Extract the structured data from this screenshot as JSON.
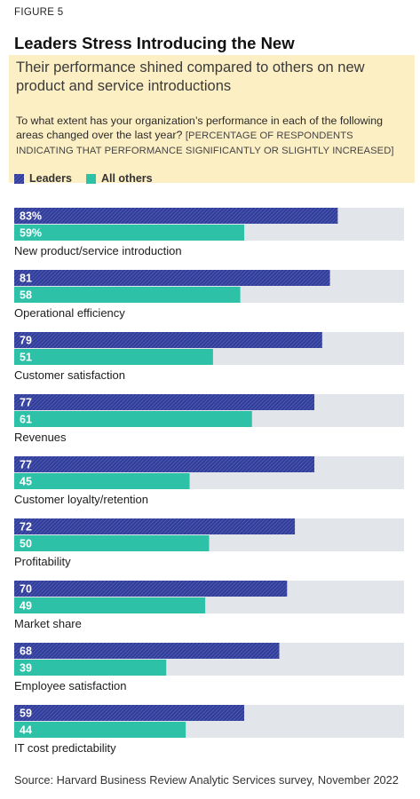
{
  "figure_label": "FIGURE 5",
  "title": "Leaders Stress Introducing the New",
  "subtitle": "Their performance shined compared to others on new product and service introductions",
  "question": "To what extent has your organization’s performance in each of the following areas changed over the last year?",
  "question_note": "[PERCENTAGE OF RESPONDENTS INDICATING THAT PERFORMANCE SIGNIFICANTLY OR SLIGHTLY INCREASED]",
  "source": "Source: Harvard Business Review Analytic Services survey, November 2022",
  "colors": {
    "leaders": "#2f3c9c",
    "others": "#2dc2a8",
    "track": "#e2e5ea",
    "header_bg": "#fdefc4"
  },
  "chart_data": {
    "type": "bar",
    "orientation": "horizontal",
    "xlim": [
      0,
      100
    ],
    "unit": "%",
    "legend_placement": "top",
    "categories": [
      "New product/service introduction",
      "Operational efficiency",
      "Customer satisfaction",
      "Revenues",
      "Customer loyalty/retention",
      "Profitability",
      "Market share",
      "Employee satisfaction",
      "IT cost predictability"
    ],
    "series": [
      {
        "name": "Leaders",
        "values": [
          83,
          81,
          79,
          77,
          77,
          72,
          70,
          68,
          59
        ]
      },
      {
        "name": "All others",
        "values": [
          59,
          58,
          51,
          61,
          45,
          50,
          49,
          39,
          44
        ]
      }
    ],
    "value_labels": {
      "Leaders": [
        "83%",
        "81",
        "79",
        "77",
        "77",
        "72",
        "70",
        "68",
        "59"
      ],
      "All others": [
        "59%",
        "58",
        "51",
        "61",
        "45",
        "50",
        "49",
        "39",
        "44"
      ]
    }
  }
}
